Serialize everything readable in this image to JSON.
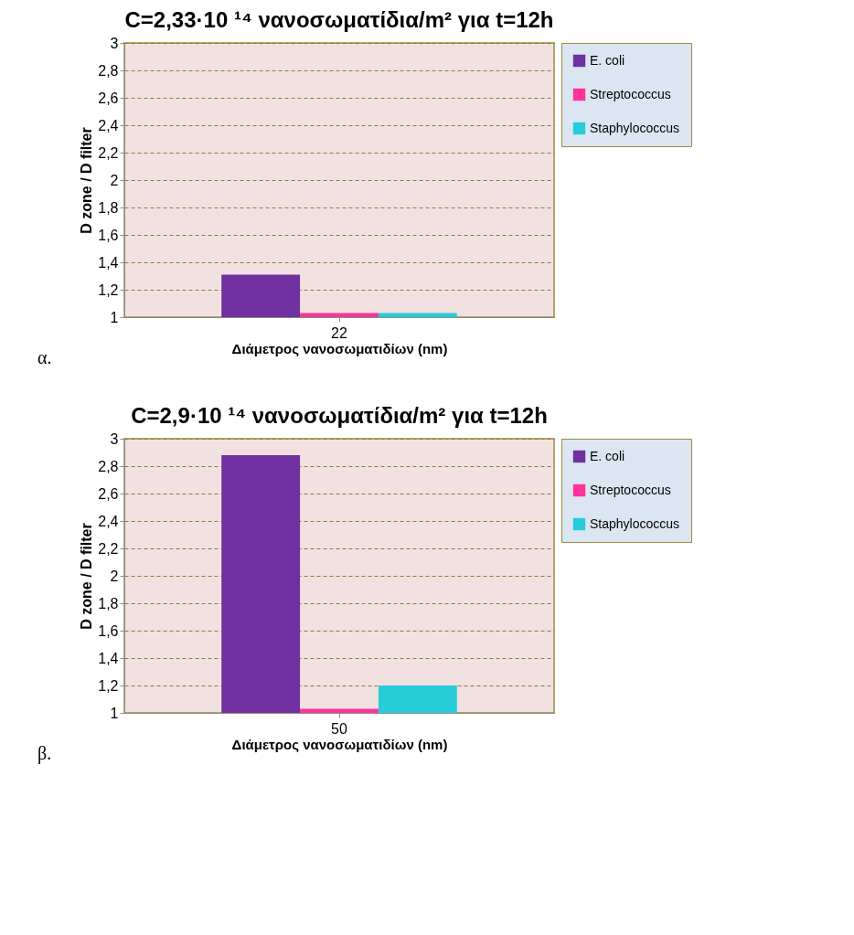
{
  "chart_data": [
    {
      "type": "bar",
      "title": "C=2,33·10 ¹⁴ νανοσωματίδια/m² για t=12h",
      "xlabel": "Διάμετρος νανοσωματιδίων (nm)",
      "ylabel": "D zone / D filter",
      "categories": [
        "22"
      ],
      "series": [
        {
          "name": "E. coli",
          "color": "#7030a0",
          "values": [
            1.31
          ]
        },
        {
          "name": "Streptococcus",
          "color": "#ff3399",
          "values": [
            1.03
          ]
        },
        {
          "name": "Staphylococcus",
          "color": "#26cdd8",
          "values": [
            1.03
          ]
        }
      ],
      "ylim": [
        1,
        3
      ],
      "yticks": [
        1,
        {
          "value": 1.2,
          "label": "1,2"
        },
        {
          "value": 1.4,
          "label": "1,4"
        },
        {
          "value": 1.6,
          "label": "1,6"
        },
        {
          "value": 1.8,
          "label": "1,8"
        },
        2,
        {
          "value": 2.2,
          "label": "2,2"
        },
        {
          "value": 2.4,
          "label": "2,4"
        },
        {
          "value": 2.6,
          "label": "2,6"
        },
        {
          "value": 2.8,
          "label": "2,8"
        },
        3
      ],
      "grid": "y",
      "legend": "right",
      "annotations": [
        "α."
      ]
    },
    {
      "type": "bar",
      "title": "C=2,9·10 ¹⁴ νανοσωματίδια/m² για t=12h",
      "xlabel": "Διάμετρος νανοσωματιδίων (nm)",
      "ylabel": "D zone / D filter",
      "categories": [
        "50"
      ],
      "series": [
        {
          "name": "E. coli",
          "color": "#7030a0",
          "values": [
            2.88
          ]
        },
        {
          "name": "Streptococcus",
          "color": "#ff3399",
          "values": [
            1.03
          ]
        },
        {
          "name": "Staphylococcus",
          "color": "#26cdd8",
          "values": [
            1.2
          ]
        }
      ],
      "ylim": [
        1,
        3
      ],
      "yticks": [
        1,
        {
          "value": 1.2,
          "label": "1,2"
        },
        {
          "value": 1.4,
          "label": "1,4"
        },
        {
          "value": 1.6,
          "label": "1,6"
        },
        {
          "value": 1.8,
          "label": "1,8"
        },
        2,
        {
          "value": 2.2,
          "label": "2,2"
        },
        {
          "value": 2.4,
          "label": "2,4"
        },
        {
          "value": 2.6,
          "label": "2,6"
        },
        {
          "value": 2.8,
          "label": "2,8"
        },
        3
      ],
      "grid": "y",
      "legend": "right",
      "annotations": [
        "β."
      ]
    }
  ]
}
